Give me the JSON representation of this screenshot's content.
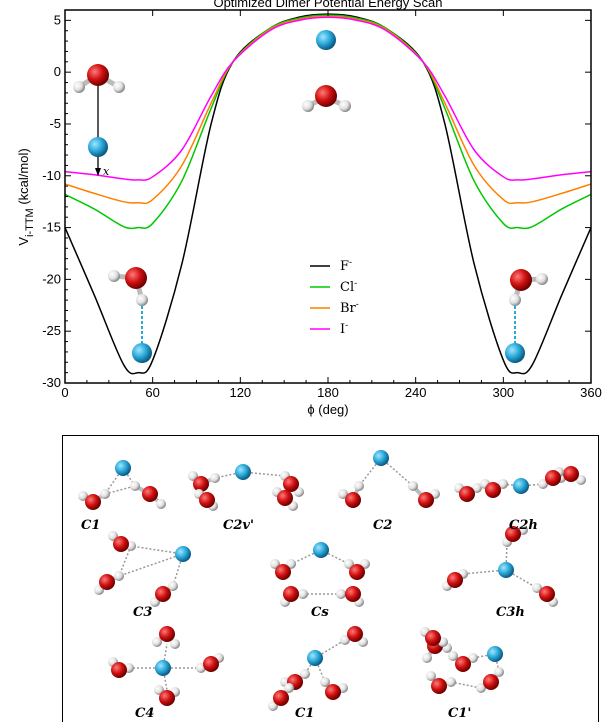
{
  "chart_data": {
    "type": "line",
    "title": "Optimized Dimer Potential Energy Scan",
    "xlabel": "ϕ (deg)",
    "ylabel_main": "V",
    "ylabel_sub": "i-TTM",
    "ylabel_unit": " (kcal/mol)",
    "xlim": [
      0,
      360
    ],
    "ylim": [
      -30,
      6
    ],
    "xticks": [
      "0",
      "60",
      "120",
      "180",
      "240",
      "300",
      "360"
    ],
    "yticks": [
      "5",
      "0",
      "-5",
      "-10",
      "-15",
      "-20",
      "-25",
      "-30"
    ],
    "x_axis_annotation": "x",
    "legend_position": "center",
    "series": [
      {
        "name": "F",
        "superscript": "-",
        "color": "#000000",
        "x": [
          0,
          20,
          40,
          50,
          60,
          80,
          100,
          115,
          140,
          160,
          180,
          200,
          220,
          245,
          260,
          280,
          300,
          310,
          320,
          340,
          360
        ],
        "y": [
          -15.0,
          -21.5,
          -28.2,
          -29.0,
          -27.8,
          -18.5,
          -5.0,
          1.0,
          4.2,
          5.3,
          5.6,
          5.3,
          4.2,
          1.0,
          -5.0,
          -18.5,
          -27.8,
          -29.0,
          -28.2,
          -21.5,
          -15.0
        ]
      },
      {
        "name": "Cl",
        "superscript": "-",
        "color": "#00c800",
        "x": [
          0,
          20,
          40,
          50,
          60,
          80,
          100,
          115,
          140,
          160,
          180,
          200,
          220,
          245,
          260,
          280,
          300,
          310,
          320,
          340,
          360
        ],
        "y": [
          -11.8,
          -13.2,
          -14.9,
          -15.0,
          -14.6,
          -10.5,
          -3.5,
          1.0,
          4.2,
          5.2,
          5.5,
          5.2,
          4.2,
          1.0,
          -3.5,
          -10.5,
          -14.6,
          -15.0,
          -14.9,
          -13.2,
          -11.8
        ]
      },
      {
        "name": "Br",
        "superscript": "-",
        "color": "#ff8000",
        "x": [
          0,
          20,
          40,
          50,
          60,
          80,
          100,
          115,
          140,
          160,
          180,
          200,
          220,
          245,
          260,
          280,
          300,
          310,
          320,
          340,
          360
        ],
        "y": [
          -10.8,
          -11.7,
          -12.5,
          -12.6,
          -12.3,
          -9.0,
          -3.0,
          1.0,
          4.1,
          5.1,
          5.4,
          5.1,
          4.1,
          1.0,
          -3.0,
          -9.0,
          -12.3,
          -12.6,
          -12.5,
          -11.7,
          -10.8
        ]
      },
      {
        "name": "I",
        "superscript": "-",
        "color": "#ff00ff",
        "x": [
          0,
          20,
          40,
          50,
          60,
          80,
          100,
          115,
          140,
          160,
          180,
          200,
          220,
          245,
          260,
          280,
          300,
          310,
          320,
          340,
          360
        ],
        "y": [
          -9.6,
          -9.9,
          -10.3,
          -10.4,
          -10.1,
          -7.5,
          -2.3,
          1.0,
          4.0,
          5.0,
          5.3,
          5.0,
          4.0,
          1.0,
          -2.3,
          -7.5,
          -10.1,
          -10.4,
          -10.3,
          -9.9,
          -9.6
        ]
      }
    ]
  },
  "structures_panel": {
    "labels": [
      "C1",
      "C2v'",
      "C2",
      "C2h",
      "C3",
      "Cs",
      "C3h",
      "C4",
      "C1",
      "C1'"
    ]
  },
  "colors": {
    "oxygen": "#cc1111",
    "hydrogen": "#e8e8e8",
    "ion": "#29a8d8",
    "hbond": "#999999"
  }
}
